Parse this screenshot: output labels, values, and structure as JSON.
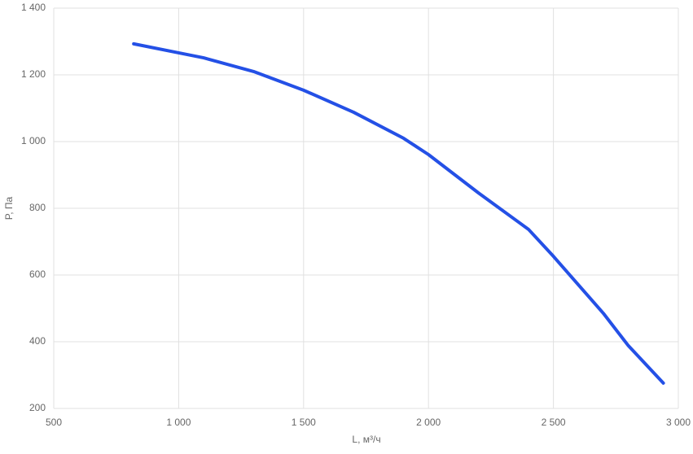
{
  "chart_data": {
    "type": "line",
    "x_label": "L, м³/ч",
    "y_label": "P, Па",
    "x": [
      820,
      1000,
      1100,
      1300,
      1500,
      1700,
      1900,
      2000,
      2200,
      2400,
      2500,
      2700,
      2800,
      2940
    ],
    "series": [
      {
        "name": "P",
        "color": "#2450e6",
        "values": [
          1293,
          1266,
          1251,
          1210,
          1154,
          1088,
          1010,
          961,
          846,
          737,
          656,
          485,
          388,
          276
        ]
      }
    ],
    "xlim": [
      500,
      3000
    ],
    "xticks": [
      500,
      {
        "value": 1000,
        "label": "1 000"
      },
      {
        "value": 1500,
        "label": "1 500"
      },
      {
        "value": 2000,
        "label": "2 000"
      },
      {
        "value": 2500,
        "label": "2 500"
      },
      {
        "value": 3000,
        "label": "3 000"
      }
    ],
    "ylim": [
      200,
      1400
    ],
    "yticks": [
      200,
      400,
      600,
      800,
      {
        "value": 1000,
        "label": "1 000"
      },
      {
        "value": 1200,
        "label": "1 200"
      },
      {
        "value": 1400,
        "label": "1 400"
      }
    ],
    "grid": true
  }
}
